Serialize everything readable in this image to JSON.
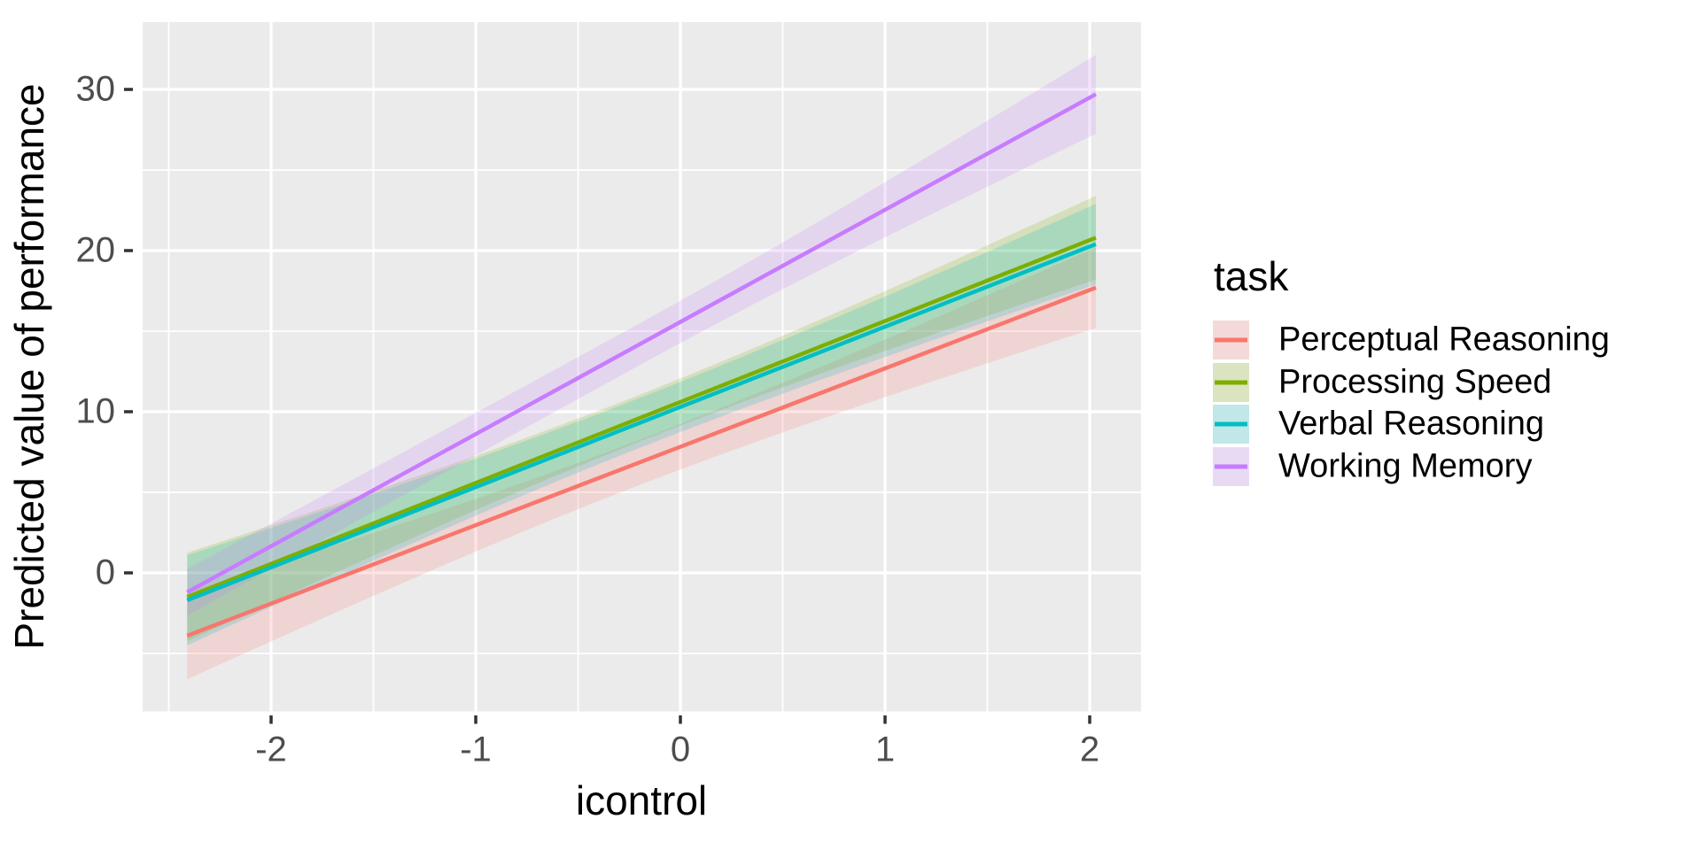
{
  "palette": {
    "panel_background": "#EBEBEB",
    "gridline": "#FFFFFF",
    "tick_mark": "#333333",
    "tick_text": "#4D4D4D",
    "axis_title_text": "#000000",
    "legend_key_background": "#F2F2F2"
  },
  "axes": {
    "x": {
      "title": "icontrol"
    },
    "y": {
      "title": "Predicted value of performance"
    }
  },
  "legend": {
    "title": "task"
  },
  "chart_data": {
    "type": "line",
    "title": "",
    "xlabel": "icontrol",
    "ylabel": "Predicted value of performance",
    "legend_title": "task",
    "legend_position": "right",
    "grid": true,
    "panel_background": "#EBEBEB",
    "ribbon_alpha": 0.2,
    "x_data_range": [
      -2.41,
      2.03
    ],
    "x_axis_range": [
      -2.63,
      2.25
    ],
    "y_axis_range": [
      -8.6,
      34.2
    ],
    "x_ticks": [
      {
        "value": -2,
        "label": "-2"
      },
      {
        "value": -1,
        "label": "-1"
      },
      {
        "value": 0,
        "label": "0"
      },
      {
        "value": 1,
        "label": "1"
      },
      {
        "value": 2,
        "label": "2"
      }
    ],
    "y_ticks": [
      {
        "value": 0,
        "label": "0"
      },
      {
        "value": 10,
        "label": "10"
      },
      {
        "value": 20,
        "label": "20"
      },
      {
        "value": 30,
        "label": "30"
      }
    ],
    "x_minor_gridlines": [
      -2.5,
      -1.5,
      -0.5,
      0.5,
      1.5
    ],
    "y_minor_gridlines": [
      -5,
      5,
      15,
      25
    ],
    "series": [
      {
        "name": "Perceptual Reasoning",
        "color": "#F8766D",
        "x_start": -2.41,
        "x_end": 2.03,
        "y_start": -3.9,
        "y_end": 17.7,
        "slope": 4.87,
        "intercept": 7.8,
        "ci_half_width": {
          "left": 2.7,
          "mid": 1.4,
          "right": 2.5
        }
      },
      {
        "name": "Processing Speed",
        "color": "#7CAE00",
        "x_start": -2.41,
        "x_end": 2.03,
        "y_start": -1.5,
        "y_end": 20.8,
        "slope": 5.02,
        "intercept": 10.6,
        "ci_half_width": {
          "left": 2.75,
          "mid": 1.45,
          "right": 2.6
        }
      },
      {
        "name": "Verbal Reasoning",
        "color": "#00BFC4",
        "x_start": -2.41,
        "x_end": 2.03,
        "y_start": -1.7,
        "y_end": 20.4,
        "slope": 4.98,
        "intercept": 10.3,
        "ci_half_width": {
          "left": 2.8,
          "mid": 1.55,
          "right": 2.5
        }
      },
      {
        "name": "Working Memory",
        "color": "#C77CFF",
        "x_start": -2.41,
        "x_end": 2.03,
        "y_start": -1.2,
        "y_end": 29.7,
        "slope": 6.97,
        "intercept": 15.6,
        "ci_half_width": {
          "left": 1.45,
          "mid": 1.3,
          "right": 2.45
        }
      }
    ]
  }
}
